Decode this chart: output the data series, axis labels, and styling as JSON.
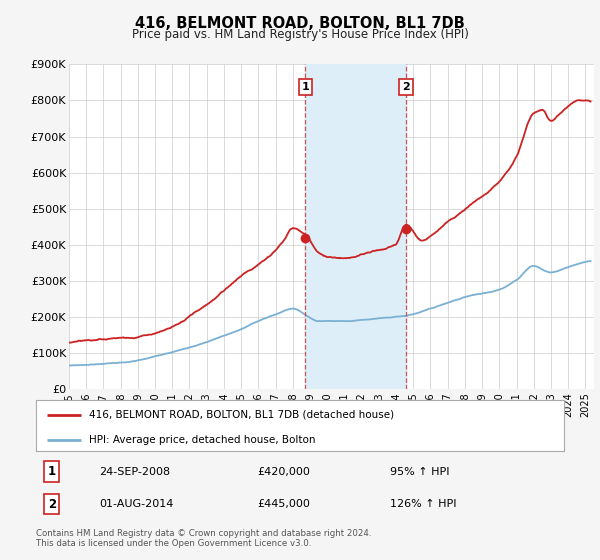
{
  "title": "416, BELMONT ROAD, BOLTON, BL1 7DB",
  "subtitle": "Price paid vs. HM Land Registry's House Price Index (HPI)",
  "ylim": [
    0,
    900000
  ],
  "yticks": [
    0,
    100000,
    200000,
    300000,
    400000,
    500000,
    600000,
    700000,
    800000,
    900000
  ],
  "ytick_labels": [
    "£0",
    "£100K",
    "£200K",
    "£300K",
    "£400K",
    "£500K",
    "£600K",
    "£700K",
    "£800K",
    "£900K"
  ],
  "xlim_start": 1995.0,
  "xlim_end": 2025.5,
  "event1_x": 2008.73,
  "event2_x": 2014.58,
  "event1_price": 420000,
  "event2_price": 445000,
  "event1_label": "1",
  "event2_label": "2",
  "event1_date": "24-SEP-2008",
  "event2_date": "01-AUG-2014",
  "event1_pct": "95%",
  "event2_pct": "126%",
  "hpi_color": "#7ab0d4",
  "property_color": "#cc2222",
  "shading_color": "#ddeef8",
  "legend_label_property": "416, BELMONT ROAD, BOLTON, BL1 7DB (detached house)",
  "legend_label_hpi": "HPI: Average price, detached house, Bolton",
  "footer_line1": "Contains HM Land Registry data © Crown copyright and database right 2024.",
  "footer_line2": "This data is licensed under the Open Government Licence v3.0.",
  "background_color": "#f5f5f5",
  "plot_bg_color": "#ffffff",
  "grid_color": "#cccccc"
}
